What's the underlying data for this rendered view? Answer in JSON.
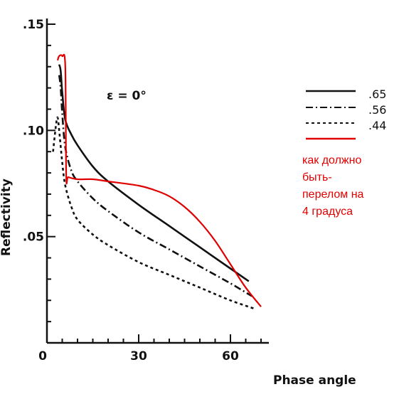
{
  "chart_data": {
    "type": "line",
    "title": "",
    "xlabel": "Phase angle",
    "ylabel": "Reflectivity",
    "xlim": [
      0,
      72
    ],
    "ylim": [
      0,
      0.15
    ],
    "x_ticks": [
      0,
      30,
      60
    ],
    "x_tick_labels": [
      "0",
      "30",
      "60"
    ],
    "y_ticks": [
      0.05,
      0.1,
      0.15
    ],
    "y_tick_labels": [
      ".05",
      ".10",
      ".15"
    ],
    "annotation_epsilon": "ε = 0°",
    "legend_position": "right",
    "series": [
      {
        "name": ".65",
        "style": "solid",
        "color": "#111111",
        "x": [
          4,
          4.5,
          5,
          6,
          8,
          10,
          15,
          20,
          30,
          40,
          50,
          60,
          66
        ],
        "y": [
          0.131,
          0.128,
          0.118,
          0.105,
          0.098,
          0.093,
          0.083,
          0.076,
          0.065,
          0.055,
          0.045,
          0.035,
          0.029
        ]
      },
      {
        "name": ".56",
        "style": "dashdot",
        "color": "#111111",
        "x": [
          4,
          4.5,
          5,
          6,
          8,
          10,
          15,
          20,
          30,
          40,
          50,
          60,
          67
        ],
        "y": [
          0.126,
          0.12,
          0.108,
          0.092,
          0.081,
          0.076,
          0.068,
          0.062,
          0.052,
          0.044,
          0.036,
          0.028,
          0.022
        ]
      },
      {
        "name": ".44",
        "style": "dashed",
        "color": "#111111",
        "x": [
          2,
          3,
          3.5,
          4,
          5,
          6,
          8,
          10,
          15,
          20,
          30,
          40,
          50,
          60,
          68
        ],
        "y": [
          0.09,
          0.103,
          0.106,
          0.1,
          0.085,
          0.074,
          0.064,
          0.058,
          0.051,
          0.046,
          0.038,
          0.032,
          0.026,
          0.02,
          0.016
        ]
      },
      {
        "name": "как должно быть- перелом на 4 градуса",
        "style": "solid",
        "color": "#e00000",
        "x": [
          3.5,
          4,
          5,
          6,
          6.3,
          7,
          10,
          15,
          20,
          30,
          35,
          40,
          45,
          50,
          55,
          60,
          65,
          70
        ],
        "y": [
          0.133,
          0.135,
          0.135,
          0.13,
          0.079,
          0.078,
          0.077,
          0.077,
          0.076,
          0.074,
          0.072,
          0.069,
          0.064,
          0.057,
          0.048,
          0.037,
          0.026,
          0.017
        ]
      }
    ]
  },
  "legend": {
    "entries": [
      ".65",
      ".56",
      ".44"
    ],
    "red_note_lines": [
      "как должно",
      "быть-",
      "перелом на",
      "4 градуса"
    ]
  }
}
